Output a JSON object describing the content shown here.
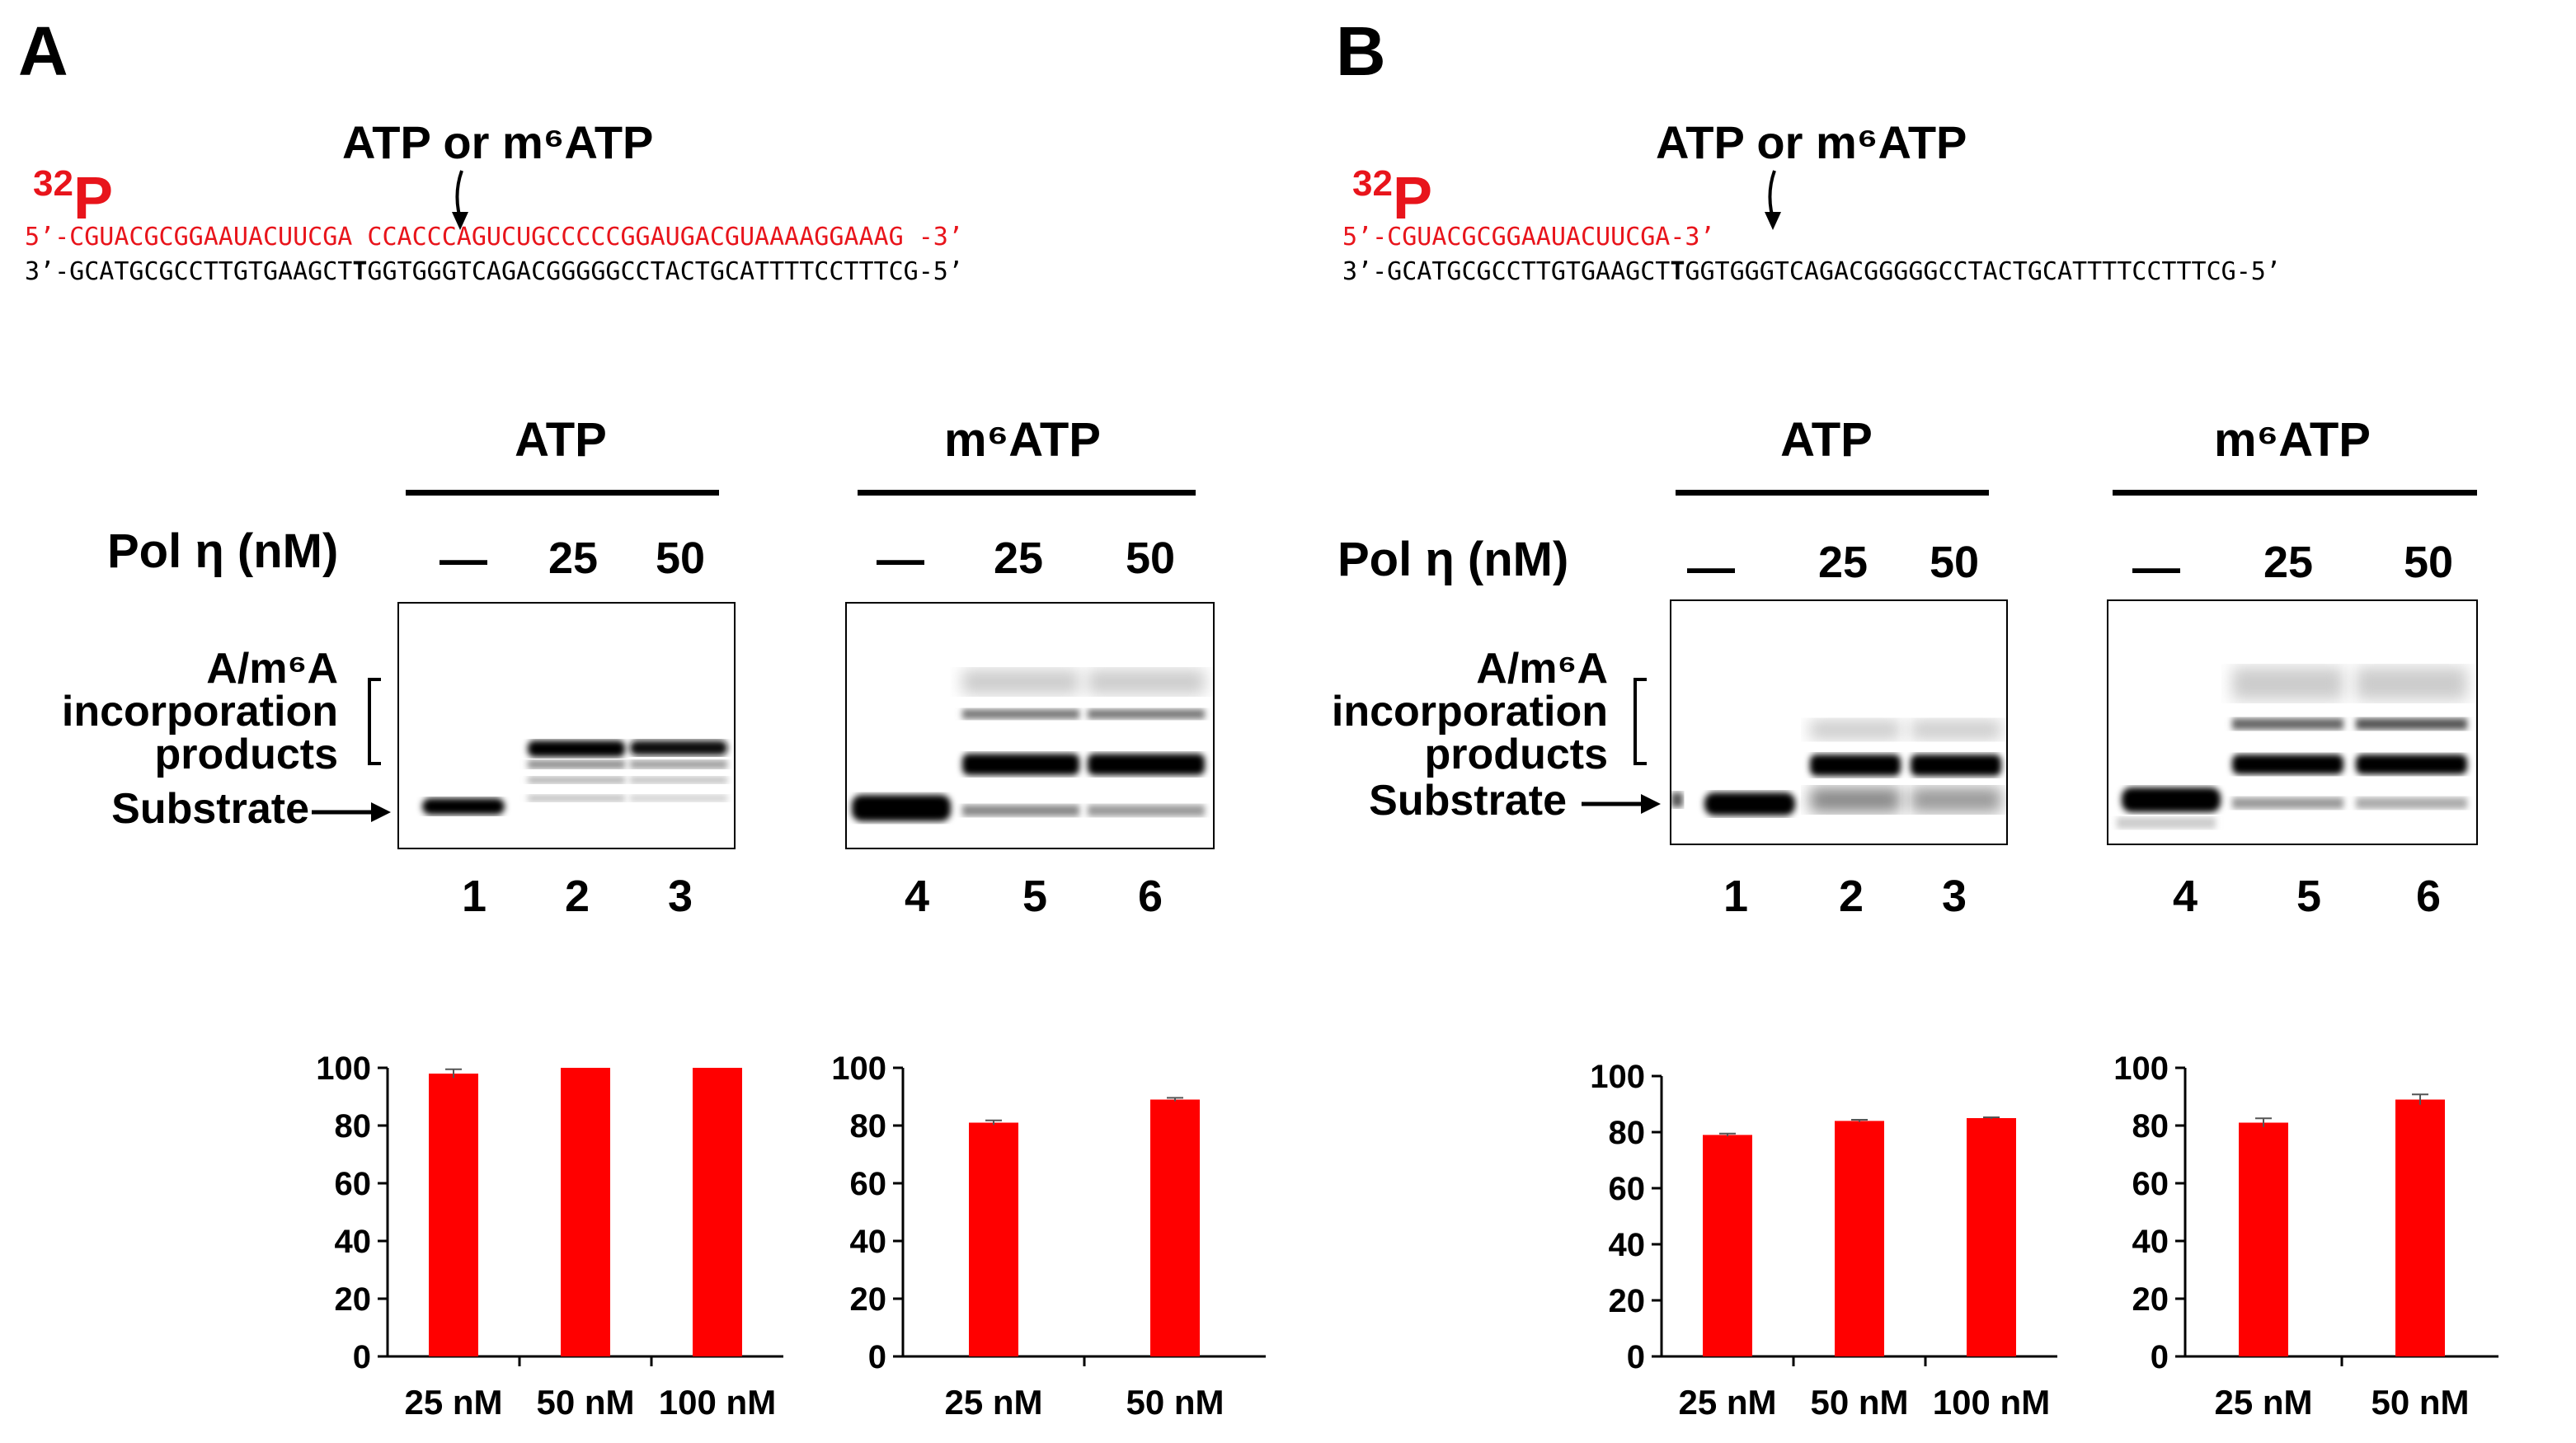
{
  "panel_a": {
    "letter": "A",
    "arrow_label": "ATP or m⁶ATP",
    "label_32p_sup": "32",
    "label_32p_main": "P",
    "primer_seq": "5’-CGUACGCGGAAUACUUCGA CCACCCAGUCUGCCCCCGGAUGACGUAAAAGGAAAG -3’",
    "template_seq_pre": "3’-GCATGCGCCTTGTGAAGCT",
    "template_seq_bold": "T",
    "template_seq_post": "GGTGGGTCAGACGGGGGCCTACTGCATTTTCCTTTCG-5’",
    "gel_header_1": "ATP",
    "gel_header_2": "m⁶ATP",
    "pol_label": "Pol η (nM)",
    "conc_dash": "—",
    "conc_1": "25",
    "conc_2": "50",
    "products_label_1": "A/m⁶A",
    "products_label_2": "incorporation",
    "products_label_3": "products",
    "substrate_label": "Substrate",
    "lanes": [
      "1",
      "2",
      "3",
      "4",
      "5",
      "6"
    ]
  },
  "panel_b": {
    "letter": "B",
    "arrow_label": "ATP or m⁶ATP",
    "label_32p_sup": "32",
    "label_32p_main": "P",
    "primer_seq": "5’-CGUACGCGGAAUACUUCGA-3’",
    "template_seq_pre": "3’-GCATGCGCCTTGTGAAGCT",
    "template_seq_bold": "T",
    "template_seq_post": "GGTGGGTCAGACGGGGGCCTACTGCATTTTCCTTTCG-5’",
    "gel_header_1": "ATP",
    "gel_header_2": "m⁶ATP",
    "pol_label": "Pol η (nM)",
    "conc_dash": "—",
    "conc_1": "25",
    "conc_2": "50",
    "products_label_1": "A/m⁶A",
    "products_label_2": "incorporation",
    "products_label_3": "products",
    "substrate_label": "Substrate",
    "lanes": [
      "1",
      "2",
      "3",
      "4",
      "5",
      "6"
    ]
  },
  "colors": {
    "bar": "#ff0000",
    "label_red": "#e8141b"
  },
  "chart_data": [
    {
      "id": "A-ATP",
      "type": "bar",
      "categories": [
        "25 nM",
        "50 nM",
        "100 nM"
      ],
      "values": [
        98,
        100,
        100
      ],
      "errors": [
        1.5,
        0,
        0
      ],
      "ylim": [
        0,
        100
      ],
      "yticks": [
        0,
        20,
        40,
        60,
        80,
        100
      ],
      "title": "",
      "xlabel": "",
      "ylabel": ""
    },
    {
      "id": "A-m6ATP",
      "type": "bar",
      "categories": [
        "25 nM",
        "50 nM"
      ],
      "values": [
        81,
        89
      ],
      "errors": [
        0.8,
        0.6
      ],
      "ylim": [
        0,
        100
      ],
      "yticks": [
        0,
        20,
        40,
        60,
        80,
        100
      ],
      "title": "",
      "xlabel": "",
      "ylabel": ""
    },
    {
      "id": "B-ATP",
      "type": "bar",
      "categories": [
        "25 nM",
        "50 nM",
        "100 nM"
      ],
      "values": [
        79,
        84,
        85
      ],
      "errors": [
        0.5,
        0.4,
        0.3
      ],
      "ylim": [
        0,
        100
      ],
      "yticks": [
        0,
        20,
        40,
        60,
        80,
        100
      ],
      "title": "",
      "xlabel": "",
      "ylabel": ""
    },
    {
      "id": "B-m6ATP",
      "type": "bar",
      "categories": [
        "25 nM",
        "50 nM"
      ],
      "values": [
        81,
        89
      ],
      "errors": [
        1.5,
        1.8
      ],
      "ylim": [
        0,
        100
      ],
      "yticks": [
        0,
        20,
        40,
        60,
        80,
        100
      ],
      "title": "",
      "xlabel": "",
      "ylabel": ""
    }
  ]
}
